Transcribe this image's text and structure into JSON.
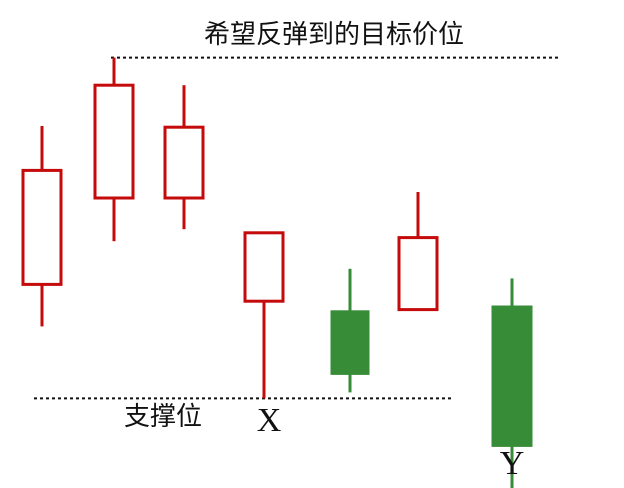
{
  "chart_data": {
    "type": "candlestick",
    "title": "",
    "xlabel": "",
    "ylabel": "",
    "grid": false,
    "legend": "none",
    "colors": {
      "up": "#c40a0a",
      "down": "#378c37",
      "reference_line": "#111111",
      "background": "#ffffff"
    },
    "candles": [
      {
        "direction": "up",
        "open": 22.8,
        "close": 32.3,
        "high": 36.0,
        "low": 19.3
      },
      {
        "direction": "up",
        "open": 30.0,
        "close": 39.4,
        "high": 41.7,
        "low": 26.4
      },
      {
        "direction": "up",
        "open": 30.0,
        "close": 35.9,
        "high": 39.4,
        "low": 27.4
      },
      {
        "direction": "up",
        "open": 21.4,
        "close": 27.1,
        "high": 27.1,
        "low": 13.3,
        "marker": "X"
      },
      {
        "direction": "down",
        "open": 20.6,
        "close": 15.3,
        "high": 24.1,
        "low": 13.8
      },
      {
        "direction": "up",
        "open": 20.7,
        "close": 26.7,
        "high": 30.5,
        "low": 20.7
      },
      {
        "direction": "down",
        "open": 21.0,
        "close": 9.3,
        "high": 23.3,
        "low": 5.7,
        "marker": "Y"
      }
    ],
    "reference_lines": [
      {
        "label": "希望反弹到的目标价位",
        "value": 41.7
      },
      {
        "label": "支撑位",
        "value": 13.3
      }
    ],
    "ylim": [
      0,
      50
    ]
  }
}
